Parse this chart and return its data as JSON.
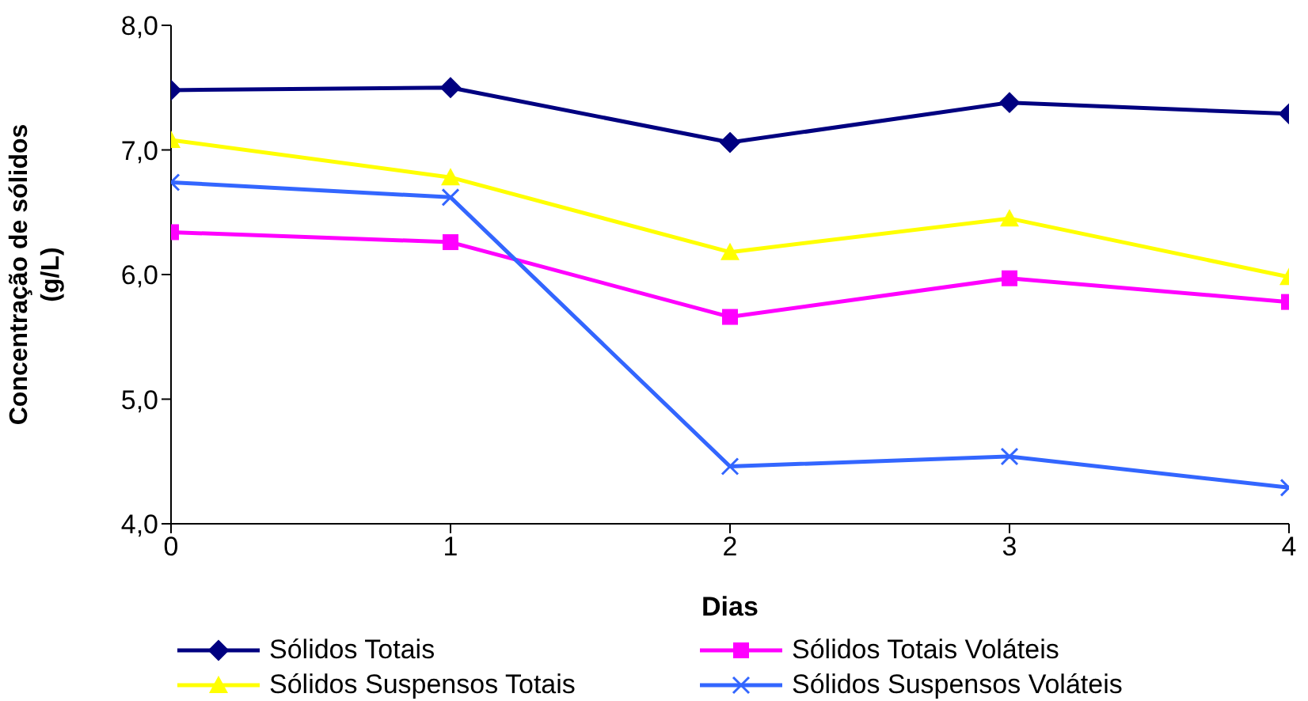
{
  "chart_data": {
    "type": "line",
    "xlabel": "Dias",
    "ylabel": "Concentração de sólidos (g/L)",
    "x": [
      0,
      1,
      2,
      3,
      4
    ],
    "xlim": [
      0,
      4
    ],
    "xticks": [
      0,
      1,
      2,
      3,
      4
    ],
    "ylim": [
      4,
      8
    ],
    "yticks": [
      {
        "value": 4,
        "label": "4,0"
      },
      {
        "value": 5,
        "label": "5,0"
      },
      {
        "value": 6,
        "label": "6,0"
      },
      {
        "value": 7,
        "label": "7,0"
      },
      {
        "value": 8,
        "label": "8,0"
      }
    ],
    "grid": false,
    "legend": "bottom",
    "series": [
      {
        "name": "Sólidos Totais",
        "color": "#000080",
        "marker": "diamond",
        "values": [
          7.48,
          7.5,
          7.06,
          7.38,
          7.29
        ]
      },
      {
        "name": "Sólidos Totais Voláteis",
        "color": "#ff00ff",
        "marker": "square",
        "values": [
          6.34,
          6.26,
          5.66,
          5.97,
          5.78
        ]
      },
      {
        "name": "Sólidos Suspensos Totais",
        "color": "#ffff00",
        "marker": "triangle",
        "values": [
          7.08,
          6.78,
          6.18,
          6.45,
          5.98
        ]
      },
      {
        "name": "Sólidos Suspensos Voláteis",
        "color": "#3366ff",
        "marker": "cross",
        "values": [
          6.74,
          6.62,
          4.46,
          4.54,
          4.29
        ]
      }
    ]
  }
}
